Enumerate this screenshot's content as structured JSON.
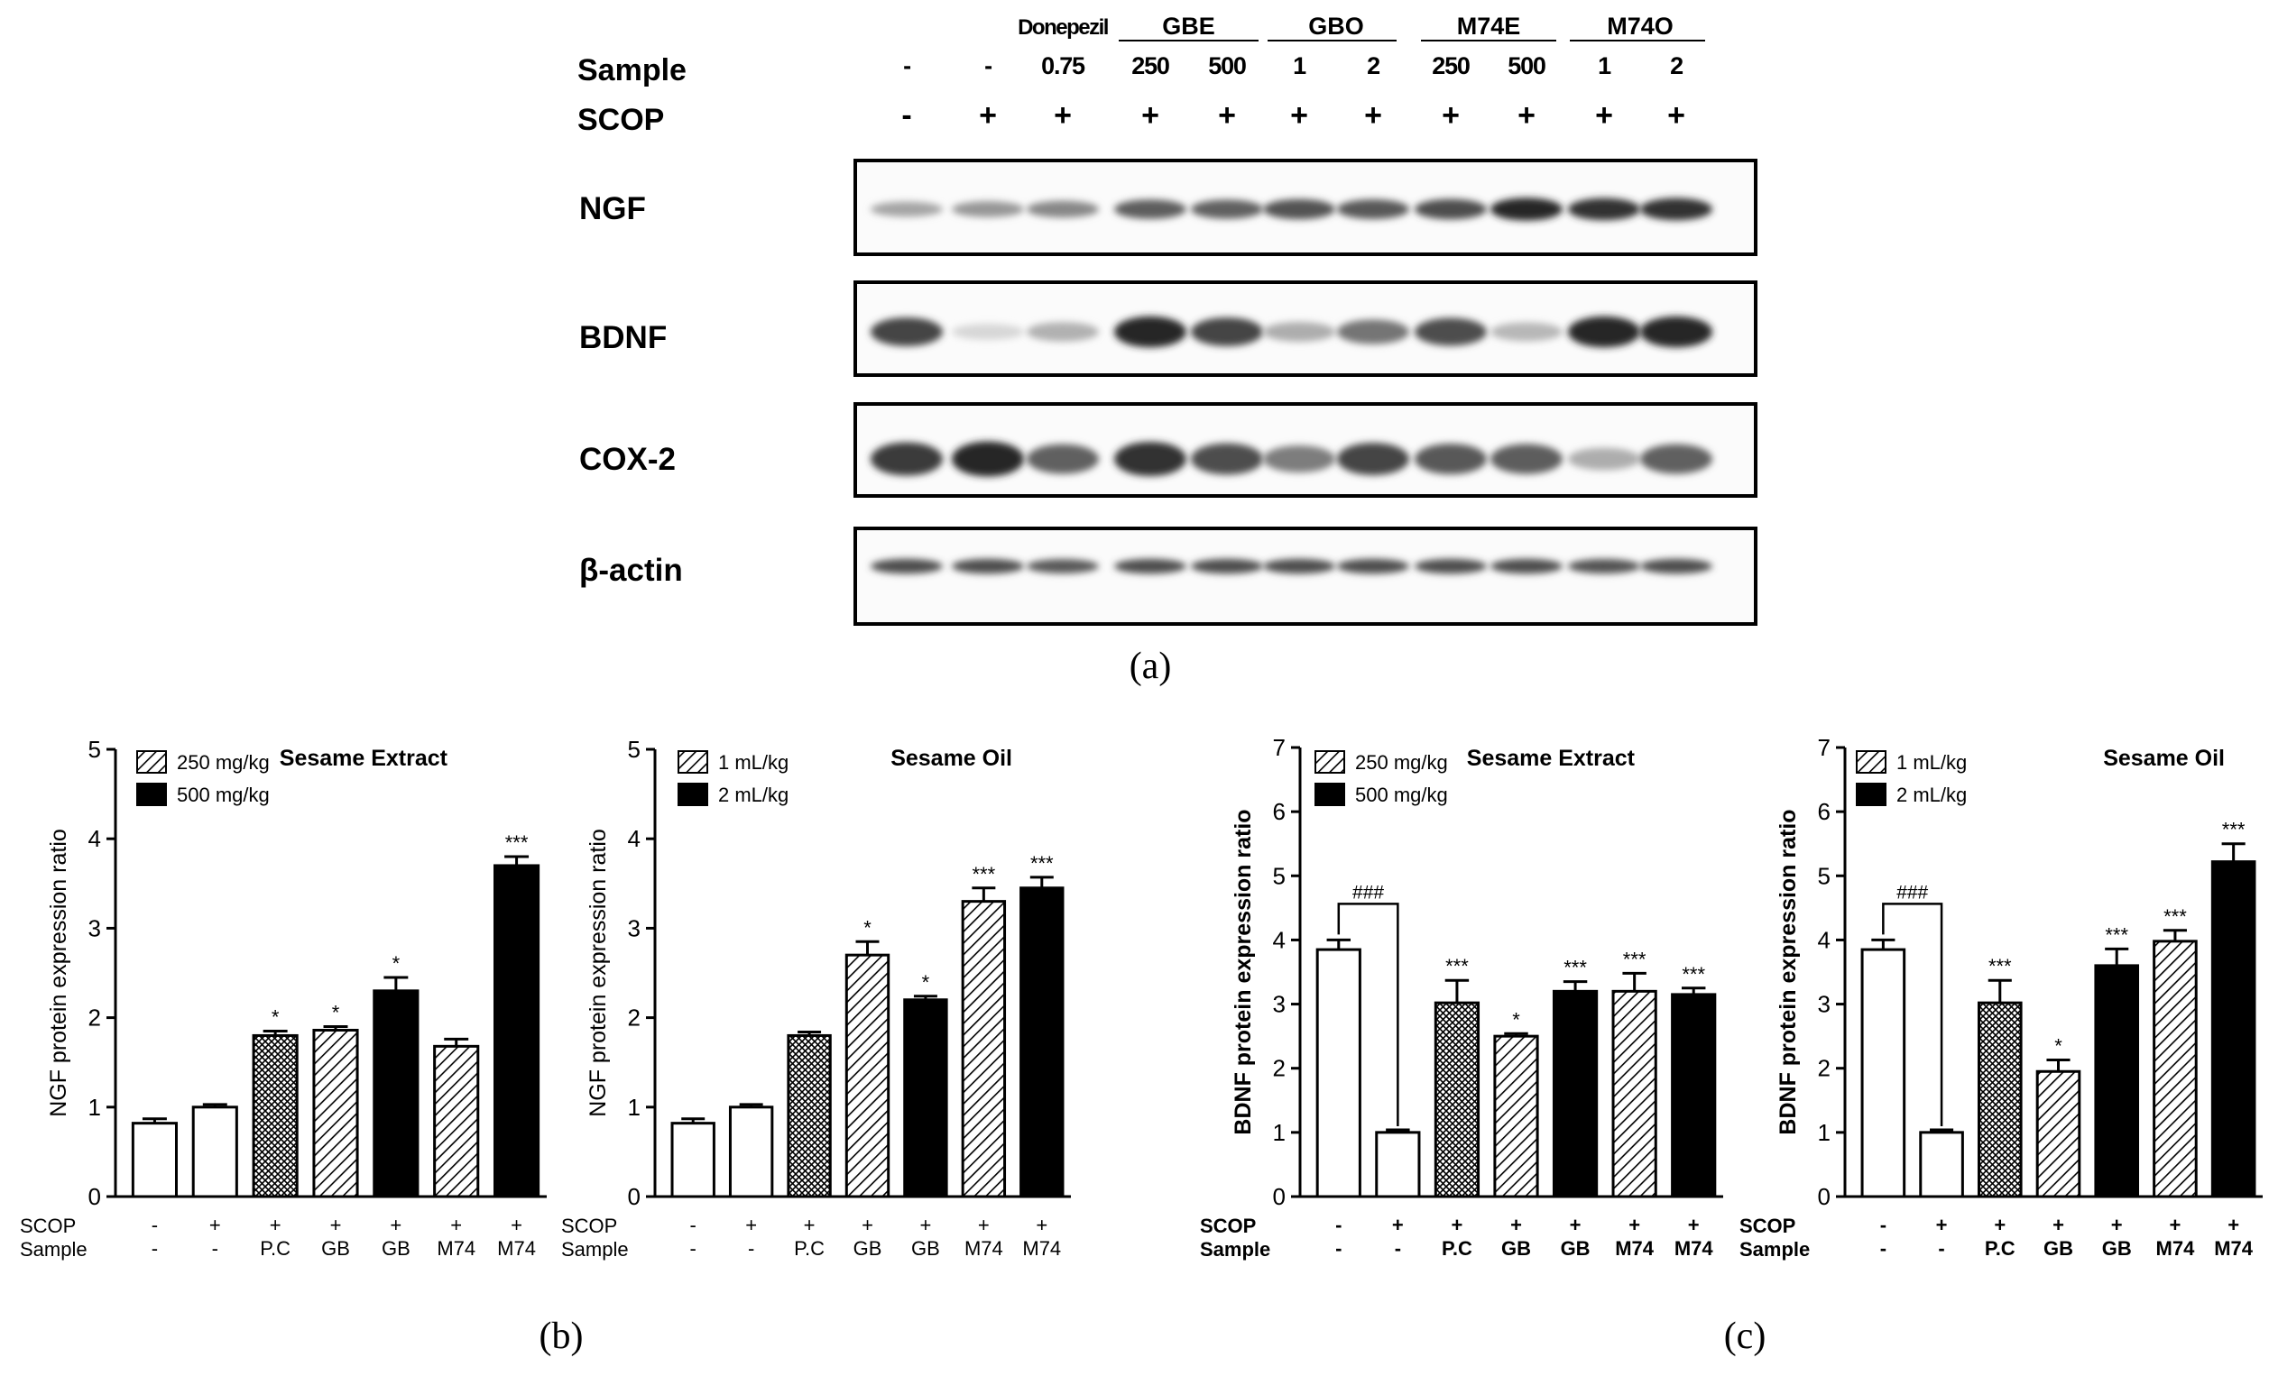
{
  "panel_labels": {
    "a": "(a)",
    "b": "(b)",
    "c": "(c)"
  },
  "blot": {
    "group_headers": [
      "Donepezil",
      "GBE",
      "GBO",
      "M74E",
      "M74O"
    ],
    "row_labels": {
      "sample": "Sample",
      "scop": "SCOP"
    },
    "sample_values": [
      "-",
      "-",
      "0.75",
      "250",
      "500",
      "1",
      "2",
      "250",
      "500",
      "1",
      "2"
    ],
    "scop_values": [
      "-",
      "+",
      "+",
      "+",
      "+",
      "+",
      "+",
      "+",
      "+",
      "+",
      "+"
    ],
    "proteins": [
      "NGF",
      "BDNF",
      "COX-2",
      "β-actin"
    ],
    "band_intensity": {
      "NGF": [
        0.35,
        0.42,
        0.5,
        0.72,
        0.7,
        0.78,
        0.75,
        0.8,
        1.0,
        0.95,
        0.95
      ],
      "BDNF": [
        0.85,
        0.08,
        0.28,
        1.0,
        0.85,
        0.3,
        0.6,
        0.8,
        0.25,
        1.0,
        1.0
      ],
      "COX-2": [
        0.9,
        1.0,
        0.7,
        0.95,
        0.8,
        0.55,
        0.85,
        0.75,
        0.72,
        0.3,
        0.7
      ],
      "β-actin": [
        0.8,
        0.8,
        0.75,
        0.8,
        0.8,
        0.8,
        0.8,
        0.8,
        0.8,
        0.78,
        0.8
      ]
    }
  },
  "axis_common": {
    "scop_label": "SCOP",
    "sample_label": "Sample",
    "scop_values": [
      "-",
      "+",
      "+",
      "+",
      "+",
      "+",
      "+"
    ],
    "categories": [
      "-",
      "-",
      "P.C",
      "GB",
      "GB",
      "M74",
      "M74"
    ]
  },
  "legend_swatches": [
    "hatched",
    "black"
  ],
  "chart_data": [
    {
      "id": "b-left",
      "type": "bar",
      "title": "Sesame Extract",
      "ylabel": "NGF protein expression ratio",
      "ylim": [
        0,
        5
      ],
      "yticks": [
        0,
        1,
        2,
        3,
        4,
        5
      ],
      "legend": [
        "250 mg/kg",
        "500 mg/kg"
      ],
      "categories": [
        "-",
        "-",
        "P.C",
        "GB",
        "GB",
        "M74",
        "M74"
      ],
      "values": [
        0.82,
        1.0,
        1.8,
        1.86,
        2.3,
        1.68,
        3.7
      ],
      "errors": [
        0.05,
        0.03,
        0.05,
        0.04,
        0.15,
        0.08,
        0.1
      ],
      "fills": [
        "white",
        "white",
        "cross",
        "hatch",
        "black",
        "hatch",
        "black"
      ],
      "significance": [
        "",
        "",
        "*",
        "*",
        "*",
        "",
        "***"
      ]
    },
    {
      "id": "b-right",
      "type": "bar",
      "title": "Sesame Oil",
      "ylabel": "NGF protein expression ratio",
      "ylim": [
        0,
        5
      ],
      "yticks": [
        0,
        1,
        2,
        3,
        4,
        5
      ],
      "legend": [
        "1 mL/kg",
        "2 mL/kg"
      ],
      "categories": [
        "-",
        "-",
        "P.C",
        "GB",
        "GB",
        "M74",
        "M74"
      ],
      "values": [
        0.82,
        1.0,
        1.8,
        2.7,
        2.2,
        3.3,
        3.45
      ],
      "errors": [
        0.05,
        0.03,
        0.04,
        0.15,
        0.04,
        0.15,
        0.12
      ],
      "fills": [
        "white",
        "white",
        "cross",
        "hatch",
        "black",
        "hatch",
        "black"
      ],
      "significance": [
        "",
        "",
        "",
        "*",
        "*",
        "***",
        "***"
      ]
    },
    {
      "id": "c-left",
      "type": "bar",
      "title": "Sesame Extract",
      "ylabel": "BDNF protein expression ratio",
      "ylim": [
        0,
        7
      ],
      "yticks": [
        0,
        1,
        2,
        3,
        4,
        5,
        6,
        7
      ],
      "legend": [
        "250 mg/kg",
        "500 mg/kg"
      ],
      "categories": [
        "-",
        "-",
        "P.C",
        "GB",
        "GB",
        "M74",
        "M74"
      ],
      "values": [
        3.85,
        1.0,
        3.02,
        2.5,
        3.2,
        3.2,
        3.15
      ],
      "errors": [
        0.15,
        0.04,
        0.35,
        0.04,
        0.15,
        0.28,
        0.1
      ],
      "fills": [
        "white",
        "white",
        "cross",
        "hatch",
        "black",
        "hatch",
        "black"
      ],
      "significance": [
        "",
        "",
        "***",
        "*",
        "***",
        "***",
        "***"
      ],
      "bracket": "###"
    },
    {
      "id": "c-right",
      "type": "bar",
      "title": "Sesame Oil",
      "ylabel": "BDNF protein expression ratio",
      "ylim": [
        0,
        7
      ],
      "yticks": [
        0,
        1,
        2,
        3,
        4,
        5,
        6,
        7
      ],
      "legend": [
        "1 mL/kg",
        "2 mL/kg"
      ],
      "categories": [
        "-",
        "-",
        "P.C",
        "GB",
        "GB",
        "M74",
        "M74"
      ],
      "values": [
        3.85,
        1.0,
        3.02,
        1.95,
        3.6,
        3.98,
        5.22
      ],
      "errors": [
        0.15,
        0.04,
        0.35,
        0.18,
        0.26,
        0.17,
        0.28
      ],
      "fills": [
        "white",
        "white",
        "cross",
        "hatch",
        "black",
        "hatch",
        "black"
      ],
      "significance": [
        "",
        "",
        "***",
        "*",
        "***",
        "***",
        "***"
      ],
      "bracket": "###"
    }
  ]
}
